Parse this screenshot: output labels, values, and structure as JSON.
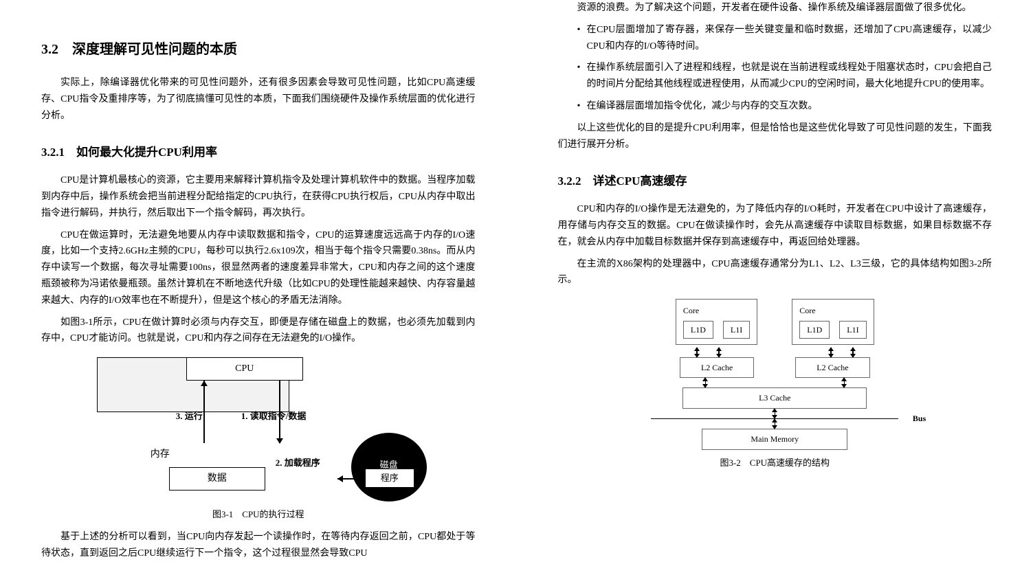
{
  "left": {
    "h2": "3.2　深度理解可见性问题的本质",
    "p1": "实际上，除编译器优化带来的可见性问题外，还有很多因素会导致可见性问题，比如CPU高速缓存、CPU指令及重排序等，为了彻底搞懂可见性的本质，下面我们围绕硬件及操作系统层面的优化进行分析。",
    "h3_1": "3.2.1　如何最大化提升CPU利用率",
    "p2": "CPU是计算机最核心的资源，它主要用来解释计算机指令及处理计算机软件中的数据。当程序加载到内存中后，操作系统会把当前进程分配给指定的CPU执行，在获得CPU执行权后，CPU从内存中取出指令进行解码，并执行，然后取出下一个指令解码，再次执行。",
    "p3": "CPU在做运算时，无法避免地要从内存中读取数据和指令，CPU的运算速度远远高于内存的I/O速度，比如一个支持2.6GHz主频的CPU，每秒可以执行2.6x109次，相当于每个指令只需要0.38ns。而从内存中读写一个数据，每次寻址需要100ns，很显然两者的速度差异非常大，CPU和内存之间的这个速度瓶颈被称为冯诺依曼瓶颈。虽然计算机在不断地迭代升级（比如CPU的处理性能越来越快、内存容量越来越大、内存的I/O效率也在不断提升），但是这个核心的矛盾无法消除。",
    "p4": "如图3-1所示，CPU在做计算时必须与内存交互，即便是存储在磁盘上的数据，也必须先加载到内存中，CPU才能访问。也就是说，CPU和内存之间存在无法避免的I/O操作。",
    "fig31": {
      "cpu": "CPU",
      "mem": "内存",
      "data": "数据",
      "disk": "磁盘",
      "program": "程序",
      "lbl_run": "3. 运行",
      "lbl_read": "1. 读取指令/数据",
      "lbl_load": "2. 加载程序",
      "caption": "图3-1　CPU的执行过程"
    },
    "p5": "基于上述的分析可以看到，当CPU向内存发起一个读操作时，在等待内存返回之前，CPU都处于等待状态，直到返回之后CPU继续运行下一个指令，这个过程很显然会导致CPU"
  },
  "right": {
    "p1": "资源的浪费。为了解决这个问题，开发者在硬件设备、操作系统及编译器层面做了很多优化。",
    "b1": "在CPU层面增加了寄存器，来保存一些关键变量和临时数据，还增加了CPU高速缓存，以减少CPU和内存的I/O等待时间。",
    "b2": "在操作系统层面引入了进程和线程，也就是说在当前进程或线程处于阻塞状态时，CPU会把自己的时间片分配给其他线程或进程使用，从而减少CPU的空闲时间，最大化地提升CPU的使用率。",
    "b3": "在编译器层面增加指令优化，减少与内存的交互次数。",
    "p2": "以上这些优化的目的是提升CPU利用率，但是恰恰也是这些优化导致了可见性问题的发生，下面我们进行展开分析。",
    "h3_2": "3.2.2　详述CPU高速缓存",
    "p3": "CPU和内存的I/O操作是无法避免的，为了降低内存的I/O耗时，开发者在CPU中设计了高速缓存，用存储与内存交互的数据。CPU在做读操作时，会先从高速缓存中读取目标数据，如果目标数据不存在，就会从内存中加载目标数据并保存到高速缓存中，再返回给处理器。",
    "p4": "在主流的X86架构的处理器中，CPU高速缓存通常分为L1、L2、L3三级，它的具体结构如图3-2所示。",
    "fig32": {
      "core": "Core",
      "l1d": "L1D",
      "l1i": "L1I",
      "l2": "L2 Cache",
      "l3": "L3 Cache",
      "bus": "Bus",
      "mm": "Main Memory",
      "caption": "图3-2　CPU高速缓存的结构"
    }
  }
}
